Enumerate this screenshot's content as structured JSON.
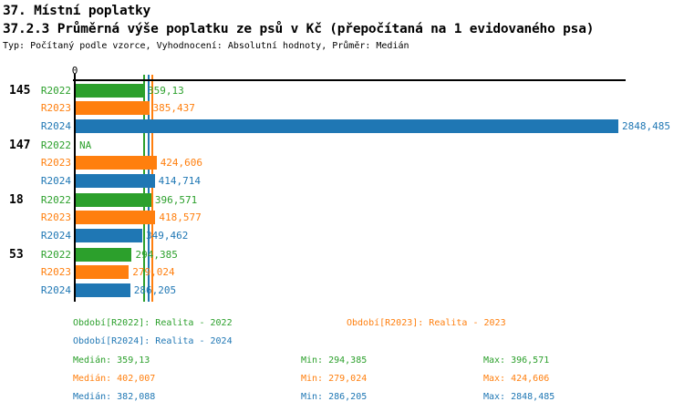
{
  "header": {
    "title": "37. Místní poplatky",
    "subtitle": "37.2.3 Průměrná výše poplatku ze psů v Kč (přepočítaná na 1 evidovaného psa)",
    "meta": "Typ: Počítaný podle vzorce, Vyhodnocení: Absolutní hodnoty, Průměr: Medián"
  },
  "colors": {
    "R2022": "#2ca02c",
    "R2023": "#ff7f0e",
    "R2024": "#1f77b4",
    "axis": "#000000"
  },
  "chart_data": {
    "type": "bar",
    "orientation": "horizontal",
    "axis_zero_label": "0",
    "xlim": [
      0,
      2848.485
    ],
    "grid": false,
    "series_labels": [
      "R2022",
      "R2023",
      "R2024"
    ],
    "groups": [
      {
        "id": "145",
        "values": [
          359.13,
          385.437,
          2848.485
        ],
        "display": [
          "359,13",
          "385,437",
          "2848,485"
        ]
      },
      {
        "id": "147",
        "values": [
          null,
          424.606,
          414.714
        ],
        "display": [
          "NA",
          "424,606",
          "414,714"
        ]
      },
      {
        "id": "18",
        "values": [
          396.571,
          418.577,
          349.462
        ],
        "display": [
          "396,571",
          "418,577",
          "349,462"
        ]
      },
      {
        "id": "53",
        "values": [
          294.385,
          279.024,
          286.205
        ],
        "display": [
          "294,385",
          "279,024",
          "286,205"
        ]
      }
    ],
    "median_lines": [
      {
        "series": "R2022",
        "value": 359.13
      },
      {
        "series": "R2024",
        "value": 382.088
      },
      {
        "series": "R2023",
        "value": 402.007
      }
    ]
  },
  "legend": {
    "r2022": "Období[R2022]: Realita - 2022",
    "r2023": "Období[R2023]: Realita - 2023",
    "r2024": "Období[R2024]: Realita - 2024"
  },
  "stats": {
    "r2022": {
      "median": "Medián: 359,13",
      "min": "Min: 294,385",
      "max": "Max: 396,571"
    },
    "r2023": {
      "median": "Medián: 402,007",
      "min": "Min: 279,024",
      "max": "Max: 424,606"
    },
    "r2024": {
      "median": "Medián: 382,088",
      "min": "Min: 286,205",
      "max": "Max: 2848,485"
    }
  }
}
